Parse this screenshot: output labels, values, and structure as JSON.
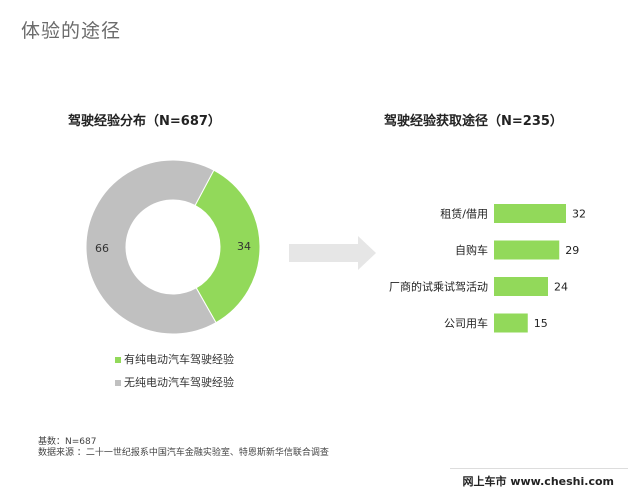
{
  "page": {
    "title": "体验的途径"
  },
  "chart_data": [
    {
      "type": "pie",
      "title": "驾驶经验分布（N=687）",
      "donut": true,
      "slices": [
        {
          "label": "有纯电动汽车驾驶经验",
          "value": 34,
          "color": "#92d95a"
        },
        {
          "label": "无纯电动汽车驾驶经验",
          "value": 66,
          "color": "#c0c0c0"
        }
      ]
    },
    {
      "type": "bar",
      "orientation": "horizontal",
      "title": "驾驶经验获取途径（N=235）",
      "categories": [
        "租赁/借用",
        "自购车",
        "厂商的试乘试驾活动",
        "公司用车"
      ],
      "values": [
        32,
        29,
        24,
        15
      ],
      "bar_color": "#92d95a",
      "xlim": [
        0,
        32
      ]
    }
  ],
  "arrow": {
    "color": "#e6e6e6",
    "icon": "right-arrow-icon"
  },
  "footer": {
    "base": "基数：N=687",
    "source": "数据来源 ：二十一世纪报系中国汽车金融实验室、特恩斯新华信联合调查"
  },
  "watermark": {
    "text": "网上车市 www.cheshi.com"
  }
}
